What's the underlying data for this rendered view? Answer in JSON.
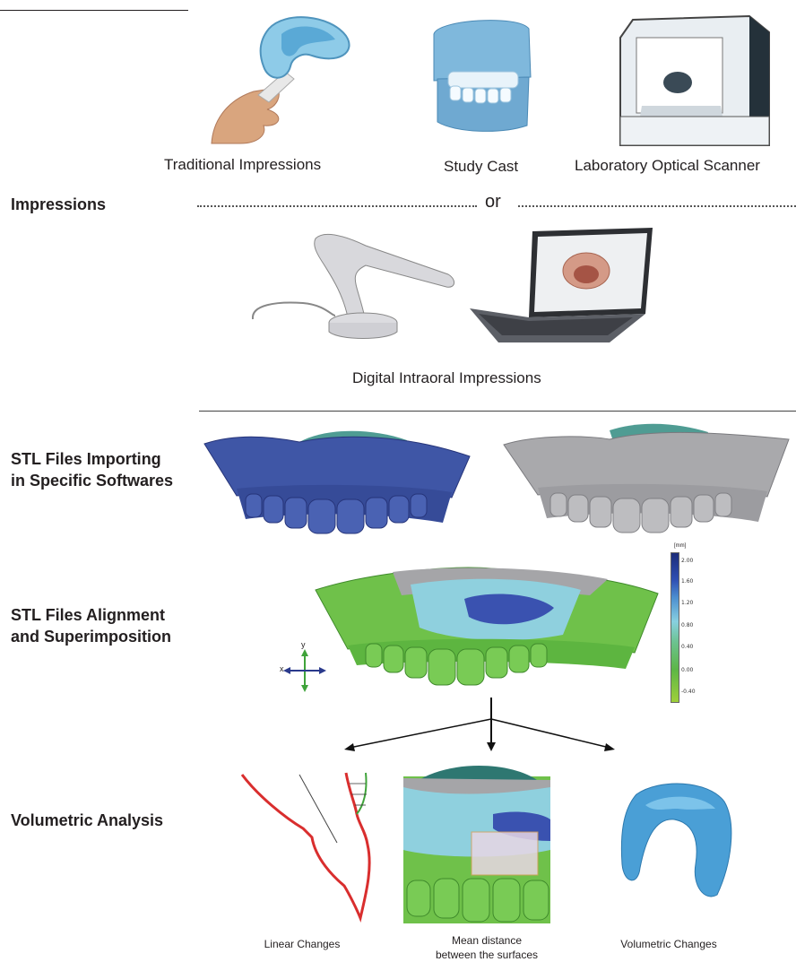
{
  "steps": {
    "impressions": "Impressions",
    "stl_import_line1": "STL Files Importing",
    "stl_import_line2": "in Specific Softwares",
    "alignment_line1": "STL Files Alignment",
    "alignment_line2": "and Superimposition",
    "volumetric": "Volumetric Analysis"
  },
  "impressions": {
    "traditional": "Traditional Impressions",
    "study_cast": "Study Cast",
    "lab_scanner": "Laboratory Optical Scanner",
    "separator": "or",
    "digital": "Digital Intraoral Impressions"
  },
  "color_scale": {
    "unit": "[mm]",
    "ticks": [
      "2.00",
      "1.60",
      "1.20",
      "0.80",
      "0.40",
      "0.00",
      "-0.40"
    ]
  },
  "axes": {
    "y": "y",
    "x": "x"
  },
  "analysis": {
    "linear": "Linear Changes",
    "mean_line1": "Mean distance",
    "mean_line2": "between the surfaces",
    "volumetric_changes": "Volumetric Changes"
  }
}
